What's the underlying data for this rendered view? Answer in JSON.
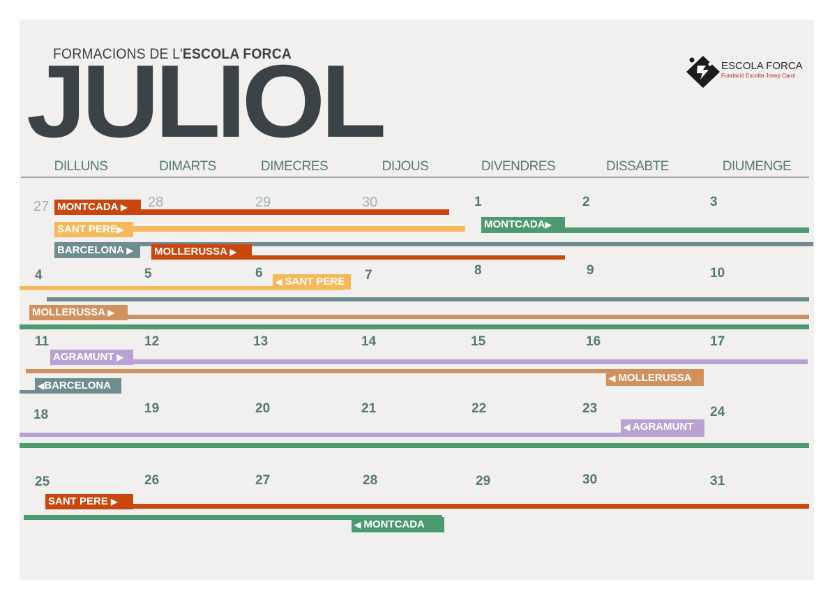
{
  "header": {
    "subtitle_light": "FORMACIONS  DE L'",
    "subtitle_bold": "ESCOLA FORCA",
    "title": "JULIOL"
  },
  "logo": {
    "icon": "escola-forca-logo-icon",
    "name": "ESCOLA FORCA",
    "subtitle": "Fundació Escolta Josep Carol"
  },
  "weekdays": [
    "DILLUNS",
    "DIMARTS",
    "DIMECRES",
    "DIJOUS",
    "DIVENDRES",
    "DISSABTE",
    "DIUMENGE"
  ],
  "weeks": [
    [
      "27",
      "28",
      "29",
      "30",
      "1",
      "2",
      "3"
    ],
    [
      "4",
      "5",
      "6",
      "7",
      "8",
      "9",
      "10"
    ],
    [
      "11",
      "12",
      "13",
      "14",
      "15",
      "16",
      "17"
    ],
    [
      "18",
      "19",
      "20",
      "21",
      "22",
      "23",
      "24"
    ],
    [
      "25",
      "26",
      "27",
      "28",
      "29",
      "30",
      "31"
    ]
  ],
  "colors": {
    "montcada_start": "#c9460f",
    "montcada_second": "#4d9a70",
    "sant_pere": "#f5b85a",
    "barcelona": "#6f8d90",
    "mollerussa_1": "#c9460f",
    "mollerussa_2": "#d1915f",
    "agramunt": "#b9a2d2",
    "week_separator": "#4d9a70",
    "background": "#f2f0ee"
  },
  "tags": {
    "montcada_1": "MONTCADA",
    "sant_pere_1": "SANT PERE",
    "barcelona_1": "BARCELONA",
    "mollerussa_1": "MOLLERUSSA",
    "montcada_2": "MONTCADA",
    "sant_pere_end": "SANT PERE",
    "mollerussa_2": "MOLLERUSSA",
    "agramunt": "AGRAMUNT",
    "barcelona_end": "BARCELONA",
    "mollerussa_end": "MOLLERUSSA",
    "agramunt_end": "AGRAMUNT",
    "sant_pere_2": "SANT PERE",
    "montcada_end": "MONTCADA"
  },
  "arrows": {
    "right": "▶",
    "left": "◀"
  }
}
